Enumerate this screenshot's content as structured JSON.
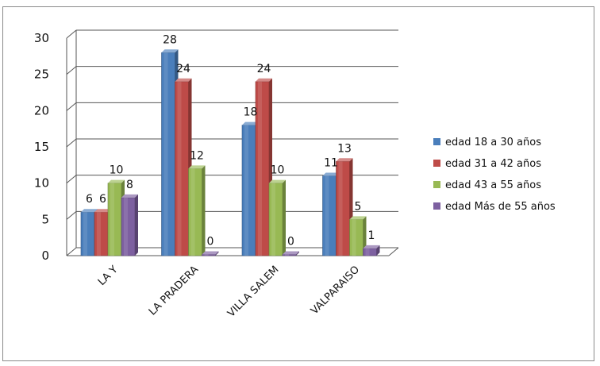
{
  "chart_data": {
    "type": "bar",
    "title": "",
    "xlabel": "",
    "ylabel": "",
    "ylim": [
      0,
      30
    ],
    "yticks": [
      0,
      5,
      10,
      15,
      20,
      25,
      30
    ],
    "grid": true,
    "legend_position": "right",
    "categories": [
      "LA Y",
      "LA PRADERA",
      "VILLA SALEM",
      "VALPARAISO"
    ],
    "series": [
      {
        "name": "edad 18 a 30 años",
        "color": "#4a7ebb",
        "values": [
          6,
          28,
          18,
          11
        ]
      },
      {
        "name": "edad  31 a 42 años",
        "color": "#be4b48",
        "values": [
          6,
          24,
          24,
          13
        ]
      },
      {
        "name": "edad 43 a 55 años",
        "color": "#98b954",
        "values": [
          10,
          12,
          10,
          5
        ]
      },
      {
        "name": "edad Más de 55 años",
        "color": "#7d60a0",
        "values": [
          8,
          0,
          0,
          1
        ]
      }
    ]
  }
}
